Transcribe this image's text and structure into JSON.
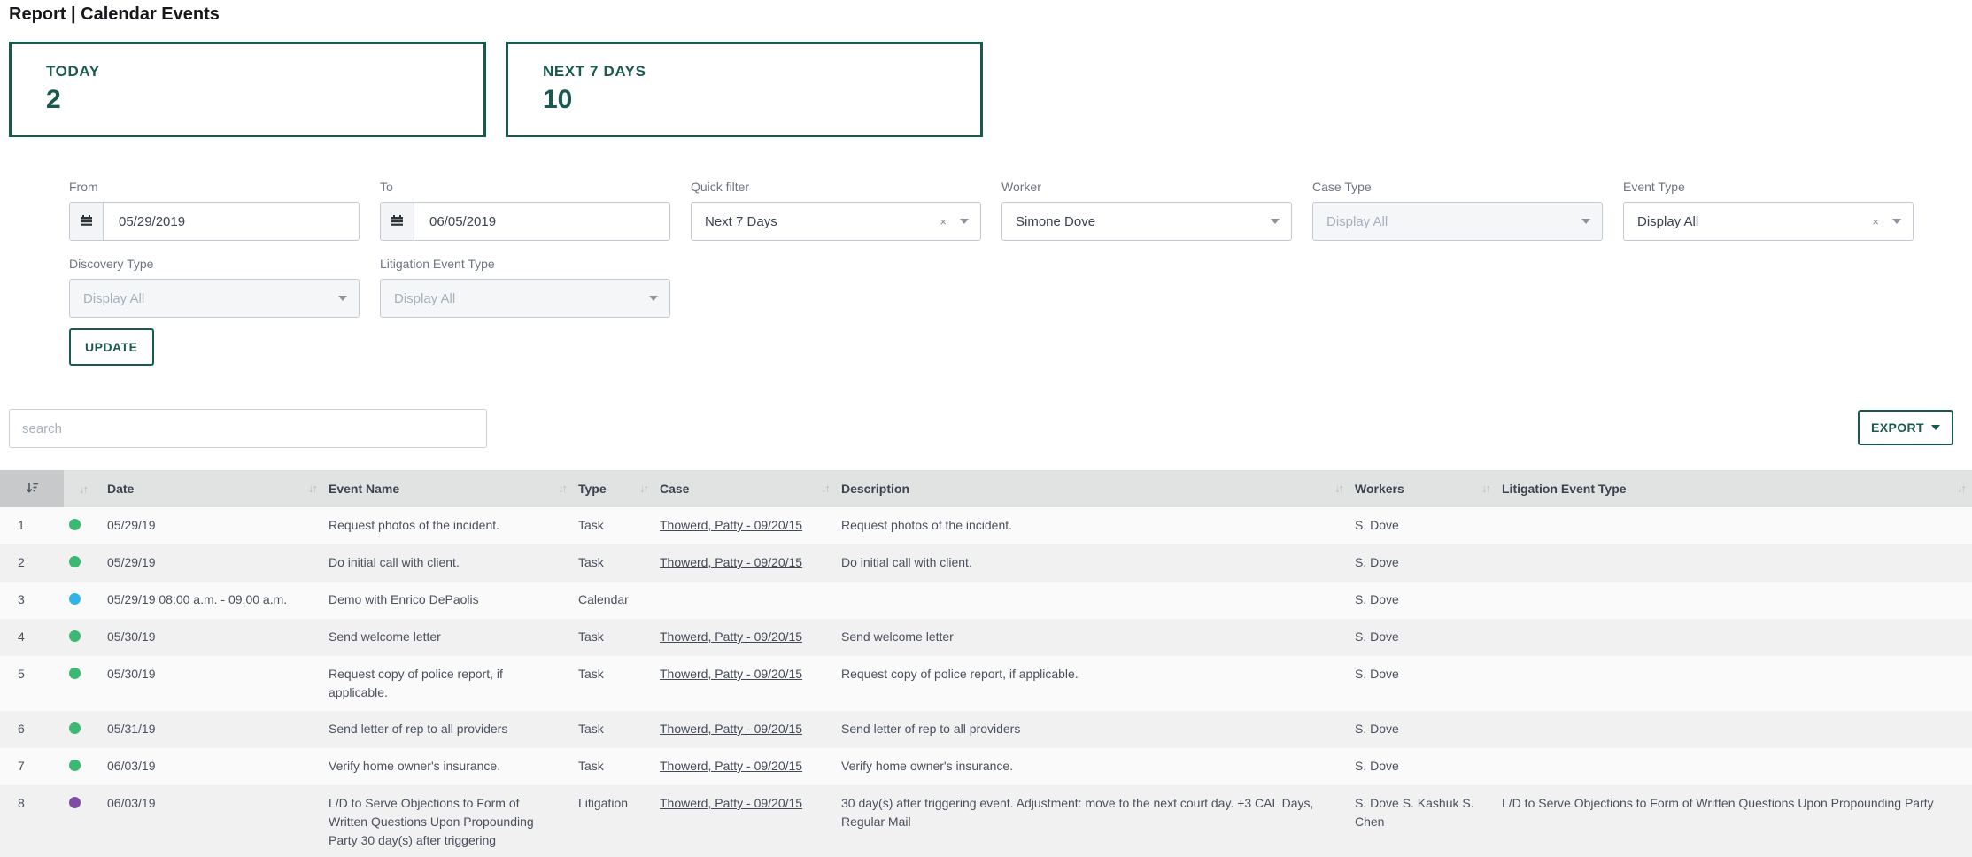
{
  "page": {
    "title": "Report | Calendar Events"
  },
  "stats": [
    {
      "label": "TODAY",
      "value": "2"
    },
    {
      "label": "NEXT 7 DAYS",
      "value": "10"
    }
  ],
  "filters": {
    "row1": [
      {
        "label": "From",
        "type": "date",
        "value": "05/29/2019"
      },
      {
        "label": "To",
        "type": "date",
        "value": "06/05/2019"
      },
      {
        "label": "Quick filter",
        "type": "select",
        "value": "Next 7 Days",
        "clearable": true,
        "placeholder": false
      },
      {
        "label": "Worker",
        "type": "select",
        "value": "Simone Dove",
        "clearable": false,
        "placeholder": false
      },
      {
        "label": "Case Type",
        "type": "select",
        "value": "Display All",
        "clearable": false,
        "placeholder": true
      },
      {
        "label": "Event Type",
        "type": "select",
        "value": "Display All",
        "clearable": true,
        "placeholder": false
      }
    ],
    "row2": [
      {
        "label": "Discovery Type",
        "type": "select",
        "value": "Display All",
        "clearable": false,
        "placeholder": true
      },
      {
        "label": "Litigation Event Type",
        "type": "select",
        "value": "Display All",
        "clearable": false,
        "placeholder": true
      }
    ],
    "update_label": "UPDATE"
  },
  "toolbar": {
    "search_placeholder": "search",
    "export_label": "EXPORT"
  },
  "table": {
    "columns": [
      "Date",
      "Event Name",
      "Type",
      "Case",
      "Description",
      "Workers",
      "Litigation Event Type"
    ],
    "rows": [
      {
        "num": "1",
        "dot": "green",
        "date": "05/29/19",
        "event": "Request photos of the incident.",
        "type": "Task",
        "case": "Thowerd, Patty - 09/20/15",
        "description": "Request photos of the incident.",
        "workers": "S. Dove",
        "litigation_event_type": ""
      },
      {
        "num": "2",
        "dot": "green",
        "date": "05/29/19",
        "event": "Do initial call with client.",
        "type": "Task",
        "case": "Thowerd, Patty - 09/20/15",
        "description": "Do initial call with client.",
        "workers": "S. Dove",
        "litigation_event_type": ""
      },
      {
        "num": "3",
        "dot": "blue",
        "date": "05/29/19 08:00 a.m. - 09:00 a.m.",
        "event": "Demo with Enrico DePaolis",
        "type": "Calendar",
        "case": "",
        "description": "",
        "workers": "S. Dove",
        "litigation_event_type": ""
      },
      {
        "num": "4",
        "dot": "green",
        "date": "05/30/19",
        "event": "Send welcome letter",
        "type": "Task",
        "case": "Thowerd, Patty - 09/20/15",
        "description": "Send welcome letter",
        "workers": "S. Dove",
        "litigation_event_type": ""
      },
      {
        "num": "5",
        "dot": "green",
        "date": "05/30/19",
        "event": "Request copy of police report, if applicable.",
        "type": "Task",
        "case": "Thowerd, Patty - 09/20/15",
        "description": "Request copy of police report, if applicable.",
        "workers": "S. Dove",
        "litigation_event_type": ""
      },
      {
        "num": "6",
        "dot": "green",
        "date": "05/31/19",
        "event": "Send letter of rep to all providers",
        "type": "Task",
        "case": "Thowerd, Patty - 09/20/15",
        "description": "Send letter of rep to all providers",
        "workers": "S. Dove",
        "litigation_event_type": ""
      },
      {
        "num": "7",
        "dot": "green",
        "date": "06/03/19",
        "event": "Verify home owner's insurance.",
        "type": "Task",
        "case": "Thowerd, Patty - 09/20/15",
        "description": "Verify home owner's insurance.",
        "workers": "S. Dove",
        "litigation_event_type": ""
      },
      {
        "num": "8",
        "dot": "purple",
        "date": "06/03/19",
        "event": "L/D to Serve Objections to Form of Written Questions Upon Propounding Party 30 day(s) after triggering",
        "type": "Litigation",
        "case": "Thowerd, Patty - 09/20/15",
        "description": "30 day(s) after triggering event. Adjustment: move to the next court day. +3 CAL Days, Regular Mail",
        "workers": "S. Dove S. Kashuk S. Chen",
        "litigation_event_type": "L/D to Serve Objections to Form of Written Questions Upon Propounding Party"
      }
    ]
  },
  "colors": {
    "accent_teal": "#1a594f",
    "header_bg": "#e1e2e2",
    "header_first_col_bg": "#c8c9ca",
    "row_odd_bg": "#fafafa",
    "row_even_bg": "#f1f1f2",
    "dot_green": "#3cb874",
    "dot_blue": "#33b1e8",
    "dot_purple": "#7e4fa0"
  }
}
